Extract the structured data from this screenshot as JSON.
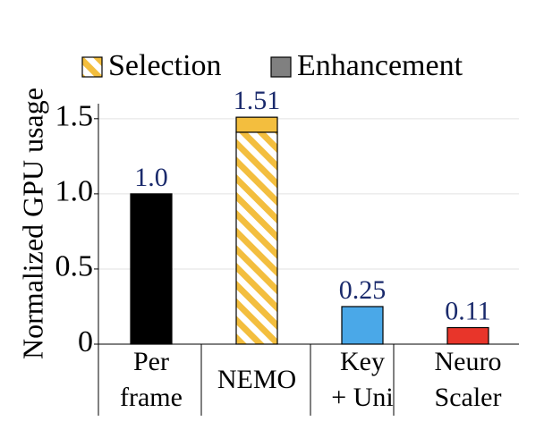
{
  "chart_data": {
    "type": "stacked-bar",
    "y_label": "Normalized GPU usage",
    "categories": [
      "Per frame",
      "NEMO",
      "Key + Uni",
      "Neuro Scaler"
    ],
    "bar_colors": [
      "#000000",
      "#f3be3e",
      "#4aa8e8",
      "#e8352a"
    ],
    "series": [
      {
        "name": "Selection",
        "color": "#f3be3e",
        "hatch": true,
        "values": [
          null,
          1.41,
          null,
          null
        ]
      },
      {
        "name": "Enhancement",
        "color": "#808080",
        "values": [
          1,
          0.1,
          0.25,
          0.11
        ]
      }
    ],
    "totals": [
      1,
      1.51,
      0.25,
      0.11
    ],
    "value_labels": [
      "1.0",
      "1.51",
      "0.25",
      "0.11"
    ],
    "label_color": "#1a2a6c",
    "ylim": [
      0,
      1.6
    ],
    "yticks": [
      0,
      0.5,
      {
        "value": 1,
        "label": "1.0"
      },
      1.5
    ],
    "grid": true
  }
}
